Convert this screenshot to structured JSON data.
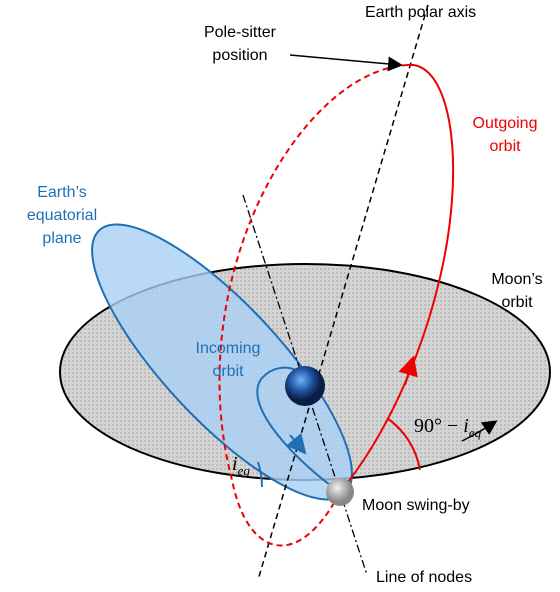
{
  "labels": {
    "polar_axis": "Earth polar axis",
    "pole_sitter": [
      "Pole-sitter",
      "position"
    ],
    "outgoing": [
      "Outgoing",
      "orbit"
    ],
    "equatorial": [
      "Earth’s",
      "equatorial",
      "plane"
    ],
    "moon_orbit": [
      "Moon’s",
      "orbit"
    ],
    "incoming": [
      "Incoming",
      "orbit"
    ],
    "angle_out": {
      "text": "90° − ",
      "var": "i",
      "sub": "eq"
    },
    "angle_in": {
      "var": "i",
      "sub": "eq"
    },
    "swing_by": "Moon swing-by",
    "nodes": "Line of nodes"
  }
}
